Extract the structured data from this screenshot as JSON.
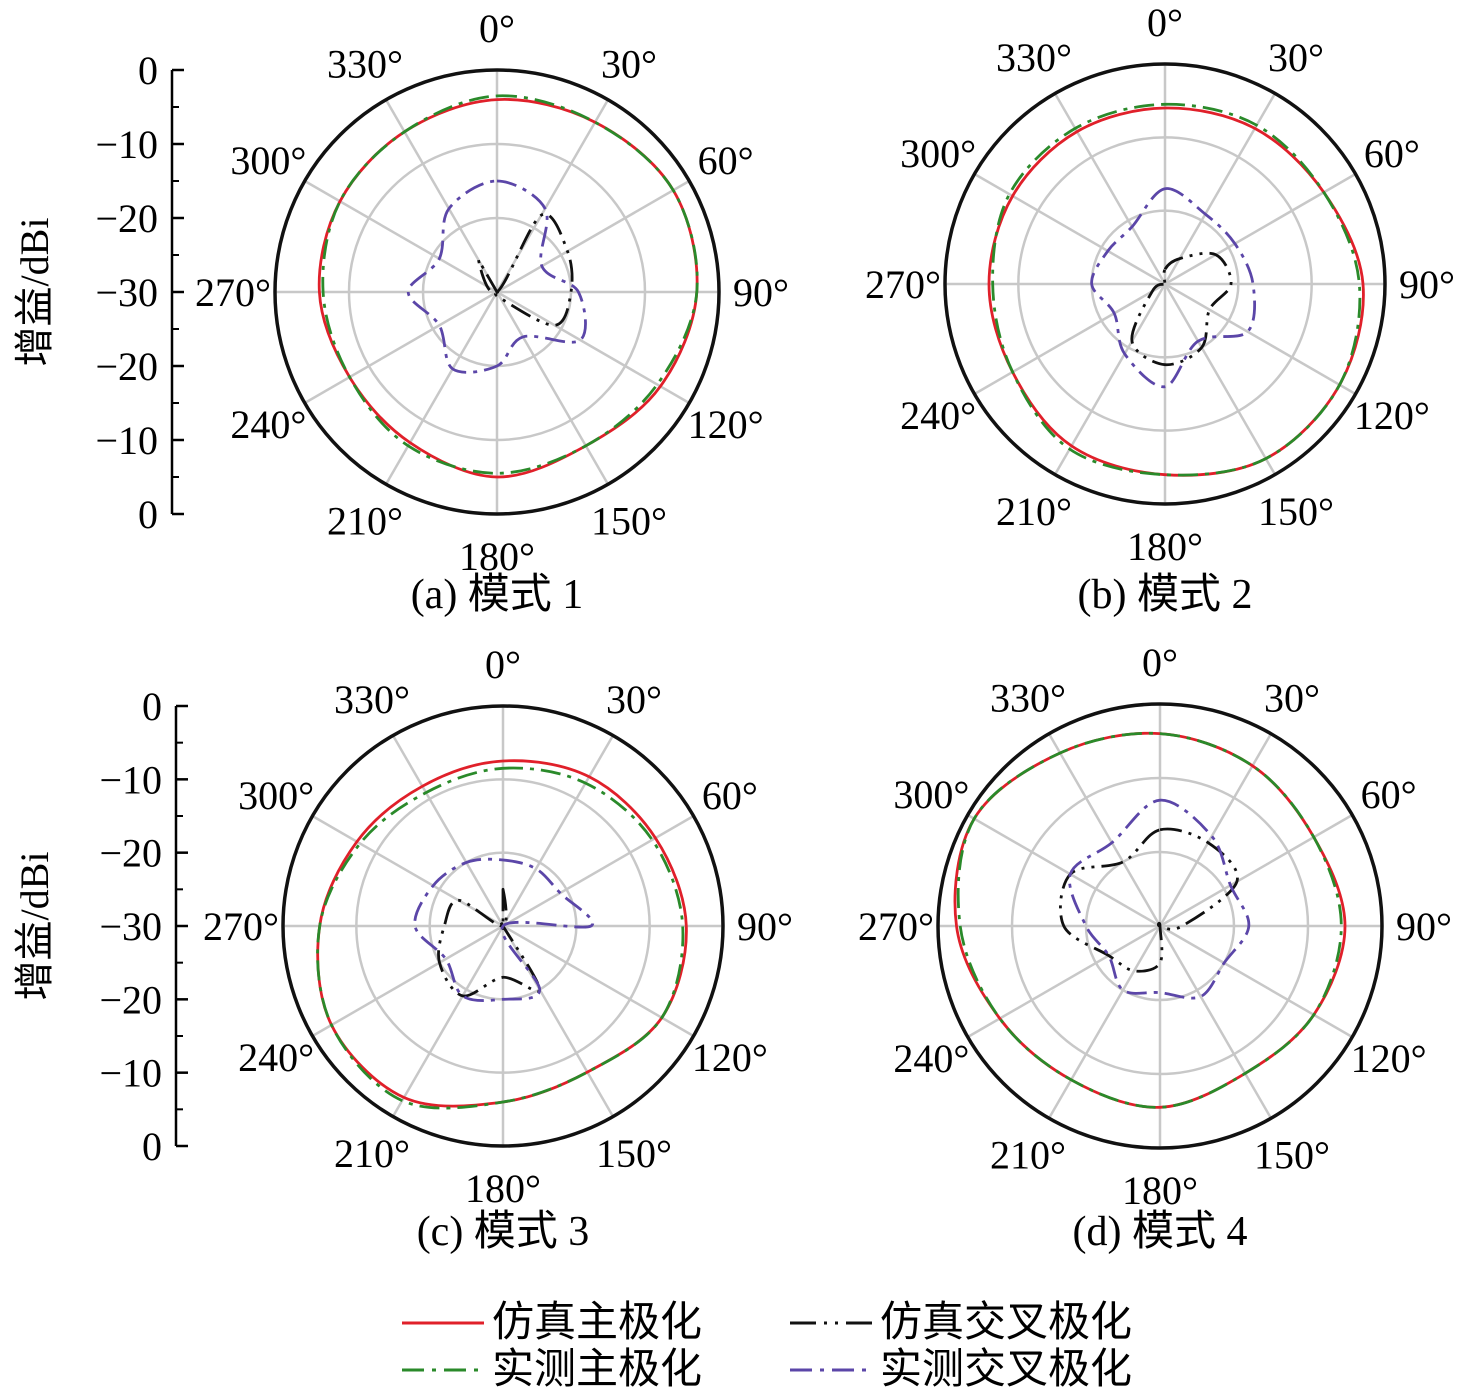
{
  "figure": {
    "legend": [
      {
        "key": "sim_co",
        "label": "仿真主极化",
        "color": "#e0202a",
        "dash": "solid"
      },
      {
        "key": "sim_x",
        "label": "仿真交叉极化",
        "color": "#111111",
        "dash": "dash-dot-dot"
      },
      {
        "key": "meas_co",
        "label": "实测主极化",
        "color": "#2a8a2a",
        "dash": "dash-dot"
      },
      {
        "key": "meas_x",
        "label": "实测交叉极化",
        "color": "#5b46a8",
        "dash": "dash-dot"
      }
    ],
    "colors": {
      "grid": "#c8c8c8",
      "outer_ring": "#111111"
    }
  },
  "chart_data": [
    {
      "type": "line",
      "subtype": "polar",
      "caption": "(a) 模式 1",
      "ylabel": "增益/dBi",
      "radial_ticks": [
        "0",
        "−10",
        "−20",
        "−30",
        "−20",
        "−10",
        "0"
      ],
      "rlim": [
        -30,
        0
      ],
      "angle_ticks": [
        "0°",
        "30°",
        "60°",
        "90°",
        "120°",
        "150°",
        "180°",
        "210°",
        "240°",
        "270°",
        "300°",
        "330°"
      ],
      "angles_deg": [
        0,
        30,
        60,
        90,
        120,
        150,
        180,
        210,
        240,
        270,
        300,
        330
      ],
      "series": [
        {
          "name": "仿真主极化",
          "values": [
            -4,
            -3.5,
            -2.5,
            -3,
            -4.5,
            -6,
            -5,
            -6.5,
            -7,
            -6,
            -5.5,
            -5
          ]
        },
        {
          "name": "实测主极化",
          "values": [
            -3.5,
            -3.5,
            -2.5,
            -3,
            -5,
            -6,
            -5.5,
            -6,
            -7,
            -6.5,
            -5.5,
            -5
          ]
        },
        {
          "name": "仿真交叉极化",
          "values": [
            -30,
            -18,
            -19,
            -20,
            -21,
            -29,
            -30,
            -30,
            -30,
            -30,
            -30,
            -25
          ]
        },
        {
          "name": "实测交叉极化",
          "values": [
            -15,
            -17,
            -23,
            -19,
            -17,
            -23,
            -20,
            -18,
            -21,
            -18,
            -21,
            -17
          ]
        }
      ]
    },
    {
      "type": "line",
      "subtype": "polar",
      "caption": "(b) 模式 2",
      "radial_ticks": [],
      "rlim": [
        -30,
        0
      ],
      "angle_ticks": [
        "0°",
        "30°",
        "60°",
        "90°",
        "120°",
        "150°",
        "180°",
        "210°",
        "240°",
        "270°",
        "300°",
        "330°"
      ],
      "angles_deg": [
        0,
        30,
        60,
        90,
        120,
        150,
        180,
        210,
        240,
        270,
        300,
        330
      ],
      "series": [
        {
          "name": "仿真主极化",
          "values": [
            -6,
            -5.5,
            -5,
            -3,
            -2.5,
            -2.5,
            -4,
            -4.5,
            -6,
            -6,
            -6,
            -6
          ]
        },
        {
          "name": "实测主极化",
          "values": [
            -5.5,
            -5,
            -5,
            -3.5,
            -2.5,
            -2.5,
            -4,
            -4,
            -6,
            -6.5,
            -5.5,
            -5.5
          ]
        },
        {
          "name": "仿真交叉极化",
          "values": [
            -28,
            -26,
            -22,
            -21,
            -23,
            -20,
            -19,
            -21,
            -28,
            -30,
            -30,
            -30
          ]
        },
        {
          "name": "实测交叉极化",
          "values": [
            -17,
            -19,
            -19,
            -18,
            -17,
            -21,
            -16,
            -19,
            -22,
            -20,
            -21,
            -21
          ]
        }
      ]
    },
    {
      "type": "line",
      "subtype": "polar",
      "caption": "(c) 模式 3",
      "ylabel": "增益/dBi",
      "radial_ticks": [
        "0",
        "−10",
        "−20",
        "−30",
        "−20",
        "−10",
        "0"
      ],
      "rlim": [
        -30,
        0
      ],
      "angle_ticks": [
        "0°",
        "30°",
        "60°",
        "90°",
        "120°",
        "150°",
        "180°",
        "210°",
        "240°",
        "270°",
        "300°",
        "330°"
      ],
      "angles_deg": [
        0,
        30,
        60,
        90,
        120,
        150,
        180,
        210,
        240,
        270,
        300,
        330
      ],
      "series": [
        {
          "name": "仿真主极化",
          "values": [
            -7.5,
            -6.5,
            -6,
            -5,
            -5,
            -7,
            -6,
            -3,
            -3,
            -5,
            -7,
            -8
          ]
        },
        {
          "name": "实测主极化",
          "values": [
            -8.5,
            -7.5,
            -6.5,
            -5.5,
            -5,
            -7,
            -6,
            -2.5,
            -3,
            -5,
            -7.5,
            -9
          ]
        },
        {
          "name": "仿真交叉极化",
          "values": [
            -25,
            -30,
            -30,
            -30,
            -30,
            -20,
            -23,
            -19,
            -20,
            -22,
            -23,
            -30
          ]
        },
        {
          "name": "实测交叉极化",
          "values": [
            -21,
            -21,
            -21,
            -18,
            -30,
            -20,
            -20,
            -19,
            -21,
            -18,
            -19,
            -20
          ]
        }
      ]
    },
    {
      "type": "line",
      "subtype": "polar",
      "caption": "(d) 模式 4",
      "radial_ticks": [],
      "rlim": [
        -30,
        0
      ],
      "angle_ticks": [
        "0°",
        "30°",
        "60°",
        "90°",
        "120°",
        "150°",
        "180°",
        "210°",
        "240°",
        "270°",
        "300°",
        "330°"
      ],
      "angles_deg": [
        0,
        30,
        60,
        90,
        120,
        150,
        180,
        210,
        240,
        270,
        300,
        330
      ],
      "series": [
        {
          "name": "仿真主极化",
          "values": [
            -4,
            -5,
            -6,
            -5,
            -6,
            -7,
            -5.5,
            -6,
            -5,
            -2.5,
            -1,
            -3
          ]
        },
        {
          "name": "实测主极化",
          "values": [
            -4,
            -5,
            -6,
            -5.5,
            -6,
            -7,
            -5.5,
            -6,
            -5,
            -3,
            -1,
            -3
          ]
        },
        {
          "name": "仿真交叉极化",
          "values": [
            -17,
            -17,
            -18,
            -27,
            -30,
            -30,
            -25,
            -23,
            -22,
            -17,
            -16,
            -20
          ]
        },
        {
          "name": "实测交叉极化",
          "values": [
            -13,
            -16,
            -19,
            -18,
            -20,
            -19,
            -21,
            -20,
            -22,
            -20,
            -16,
            -17
          ]
        }
      ]
    }
  ]
}
